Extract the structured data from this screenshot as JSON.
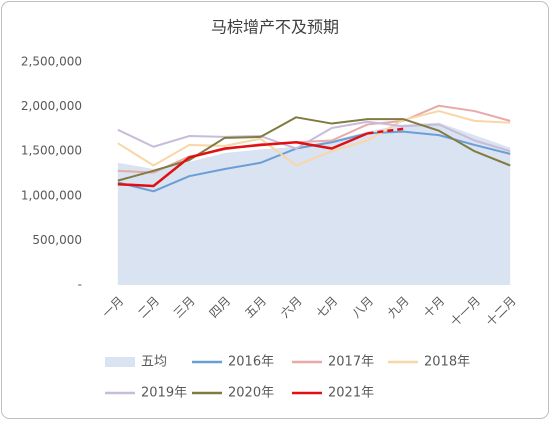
{
  "chart_data": {
    "type": "line",
    "title": "马棕增产不及预期",
    "categories": [
      "一月",
      "二月",
      "三月",
      "四月",
      "五月",
      "六月",
      "七月",
      "八月",
      "九月",
      "十月",
      "十一月",
      "十二月"
    ],
    "ylim": [
      0,
      2500000
    ],
    "yticks": [
      {
        "value": 0,
        "label": "-"
      },
      {
        "value": 500000,
        "label": "500,000"
      },
      {
        "value": 1000000,
        "label": "1,000,000"
      },
      {
        "value": 1500000,
        "label": "1,500,000"
      },
      {
        "value": 2000000,
        "label": "2,000,000"
      },
      {
        "value": 2500000,
        "label": "2,500,000"
      }
    ],
    "grid": false,
    "legend": "bottom",
    "series": [
      {
        "name": "五均",
        "kind": "area",
        "color": "#dae3f1",
        "values": [
          1370000,
          1300000,
          1380000,
          1480000,
          1520000,
          1550000,
          1620000,
          1720000,
          1800000,
          1820000,
          1680000,
          1540000
        ]
      },
      {
        "name": "2016年",
        "color": "#6a9fd6",
        "values": [
          1150000,
          1050000,
          1220000,
          1300000,
          1370000,
          1530000,
          1600000,
          1700000,
          1720000,
          1680000,
          1570000,
          1470000
        ]
      },
      {
        "name": "2017年",
        "color": "#e8aaa8",
        "values": [
          1280000,
          1260000,
          1440000,
          1520000,
          1580000,
          1600000,
          1620000,
          1800000,
          1840000,
          2010000,
          1950000,
          1840000
        ]
      },
      {
        "name": "2018年",
        "color": "#f8d6a8",
        "values": [
          1590000,
          1340000,
          1570000,
          1560000,
          1640000,
          1340000,
          1500000,
          1620000,
          1850000,
          1950000,
          1840000,
          1820000
        ]
      },
      {
        "name": "2019年",
        "color": "#c7bcd9",
        "values": [
          1740000,
          1550000,
          1670000,
          1660000,
          1670000,
          1530000,
          1760000,
          1830000,
          1780000,
          1800000,
          1620000,
          1500000
        ]
      },
      {
        "name": "2020年",
        "color": "#807b40",
        "values": [
          1170000,
          1280000,
          1400000,
          1650000,
          1660000,
          1880000,
          1810000,
          1860000,
          1860000,
          1730000,
          1500000,
          1340000
        ]
      },
      {
        "name": "2021年",
        "color": "#e01010",
        "dash_from": 7,
        "values": [
          1130000,
          1110000,
          1430000,
          1530000,
          1570000,
          1600000,
          1530000,
          1700000,
          1750000,
          null,
          null,
          null
        ]
      }
    ]
  }
}
